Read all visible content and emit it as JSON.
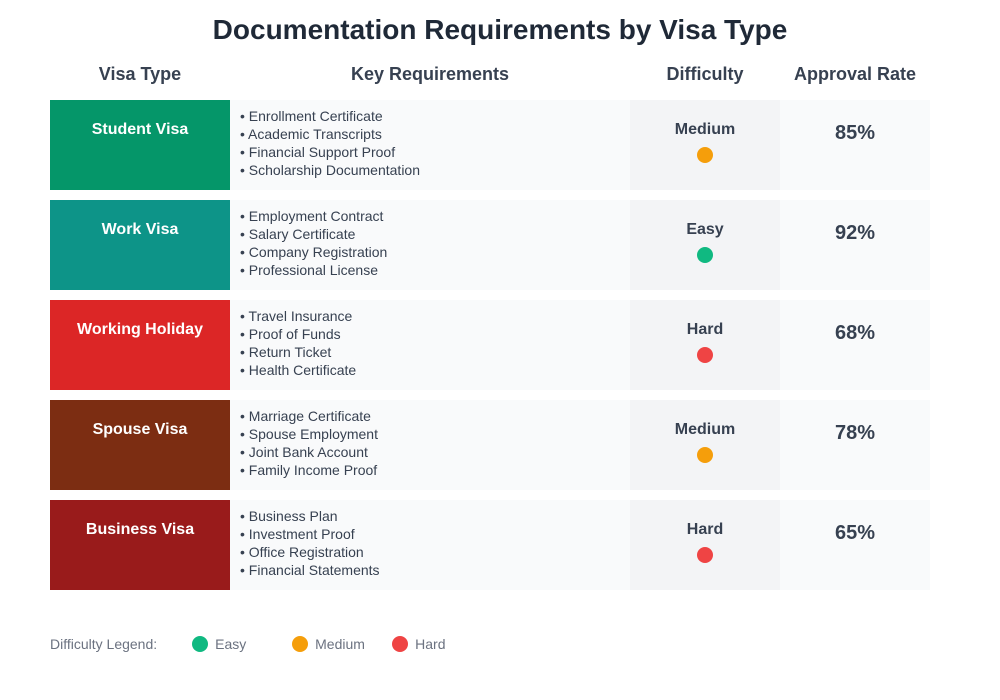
{
  "title": "Documentation Requirements by Visa Type",
  "headers": [
    "Visa Type",
    "Key Requirements",
    "Difficulty",
    "Approval Rate"
  ],
  "difficulty_colors": {
    "Easy": "#10b981",
    "Medium": "#f59e0b",
    "Hard": "#ef4444"
  },
  "chart_data": {
    "type": "table",
    "title": "Documentation Requirements by Visa Type",
    "columns": [
      "Visa Type",
      "Key Requirements",
      "Difficulty",
      "Approval Rate"
    ],
    "rows": [
      {
        "visa_type": "Student Visa",
        "color": "#059669",
        "requirements": [
          "Enrollment Certificate",
          "Academic Transcripts",
          "Financial Support Proof",
          "Scholarship Documentation"
        ],
        "difficulty": "Medium",
        "approval_rate": "85%"
      },
      {
        "visa_type": "Work Visa",
        "color": "#0d9488",
        "requirements": [
          "Employment Contract",
          "Salary Certificate",
          "Company Registration",
          "Professional License"
        ],
        "difficulty": "Easy",
        "approval_rate": "92%"
      },
      {
        "visa_type": "Working Holiday",
        "color": "#dc2626",
        "requirements": [
          "Travel Insurance",
          "Proof of Funds",
          "Return Ticket",
          "Health Certificate"
        ],
        "difficulty": "Hard",
        "approval_rate": "68%"
      },
      {
        "visa_type": "Spouse Visa",
        "color": "#7c2d12",
        "requirements": [
          "Marriage Certificate",
          "Spouse Employment",
          "Joint Bank Account",
          "Family Income Proof"
        ],
        "difficulty": "Medium",
        "approval_rate": "78%"
      },
      {
        "visa_type": "Business Visa",
        "color": "#991b1b",
        "requirements": [
          "Business Plan",
          "Investment Proof",
          "Office Registration",
          "Financial Statements"
        ],
        "difficulty": "Hard",
        "approval_rate": "65%"
      }
    ]
  },
  "legend": {
    "label": "Difficulty Legend:",
    "items": [
      "Easy",
      "Medium",
      "Hard"
    ]
  }
}
